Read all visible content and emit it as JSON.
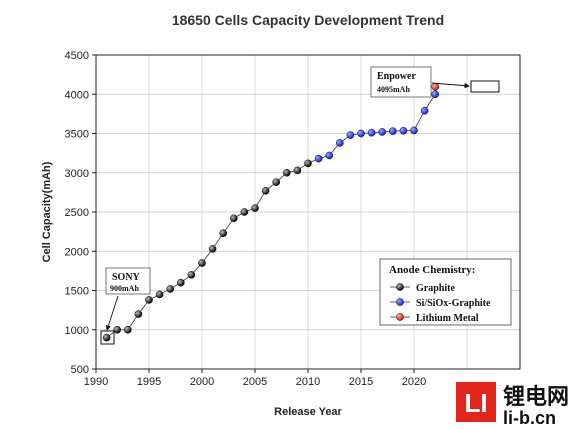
{
  "chart_data": {
    "type": "scatter",
    "title": "18650 Cells Capacity Development Trend",
    "xlabel": "Release Year",
    "ylabel": "Cell Capacity(mAh)",
    "xlim": [
      1990,
      2030
    ],
    "ylim": [
      500,
      4500
    ],
    "x_ticks": [
      1990,
      1995,
      2000,
      2005,
      2010,
      2015,
      2020
    ],
    "y_ticks": [
      500,
      1000,
      1500,
      2000,
      2500,
      3000,
      3500,
      4000,
      4500
    ],
    "grid": true,
    "legend_title": "Anode Chemistry:",
    "legend_position": "bottom-right",
    "series": [
      {
        "name": "Graphite",
        "color": "#111111",
        "x": [
          1991,
          1992,
          1993,
          1994,
          1995,
          1996,
          1997,
          1998,
          1999,
          2000,
          2001,
          2002,
          2003,
          2004,
          2005,
          2006,
          2007,
          2008,
          2009,
          2010
        ],
        "y": [
          900,
          1000,
          1000,
          1200,
          1380,
          1450,
          1520,
          1600,
          1700,
          1850,
          2030,
          2230,
          2420,
          2500,
          2550,
          2770,
          2880,
          3000,
          3030,
          3120
        ]
      },
      {
        "name": "Si/SiOx-Graphite",
        "color": "#1f2fe0",
        "x": [
          2011,
          2012,
          2013,
          2014,
          2015,
          2016,
          2017,
          2018,
          2019,
          2020,
          2021,
          2022
        ],
        "y": [
          3180,
          3220,
          3380,
          3480,
          3500,
          3510,
          3520,
          3530,
          3535,
          3540,
          3790,
          4000
        ]
      },
      {
        "name": "Lithium Metal",
        "color": "#e0201a",
        "x": [
          2022
        ],
        "y": [
          4095
        ]
      }
    ],
    "annotations": [
      {
        "label": "SONY",
        "sublabel": "900mAh"
      },
      {
        "label": "Enpower",
        "sublabel": "4095mAh"
      }
    ]
  },
  "watermark": {
    "logo_letters": "LI",
    "logo_color": "#e1251b",
    "cn_text": "锂电网",
    "url": "li-b.cn"
  }
}
